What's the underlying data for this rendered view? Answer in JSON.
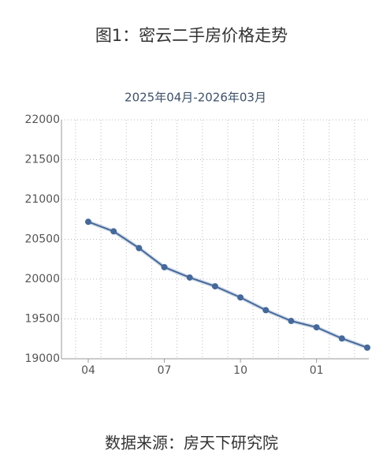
{
  "chart_data": {
    "type": "line",
    "title": "图1：密云二手房价格走势",
    "subtitle": "2025年04月-2026年03月",
    "source": "数据来源：房天下研究院",
    "categories": [
      "04",
      null,
      null,
      "07",
      null,
      null,
      "10",
      null,
      null,
      "01",
      null,
      null
    ],
    "series": [
      {
        "name": "密云",
        "color": "#46699a",
        "values": [
          20720,
          20600,
          20390,
          20150,
          20020,
          19910,
          19770,
          19610,
          19475,
          19395,
          19255,
          19140
        ]
      }
    ],
    "ylim": [
      19000,
      22000
    ],
    "yticks": [
      19000,
      19500,
      20000,
      20500,
      21000,
      21500,
      22000
    ],
    "grid": true
  }
}
